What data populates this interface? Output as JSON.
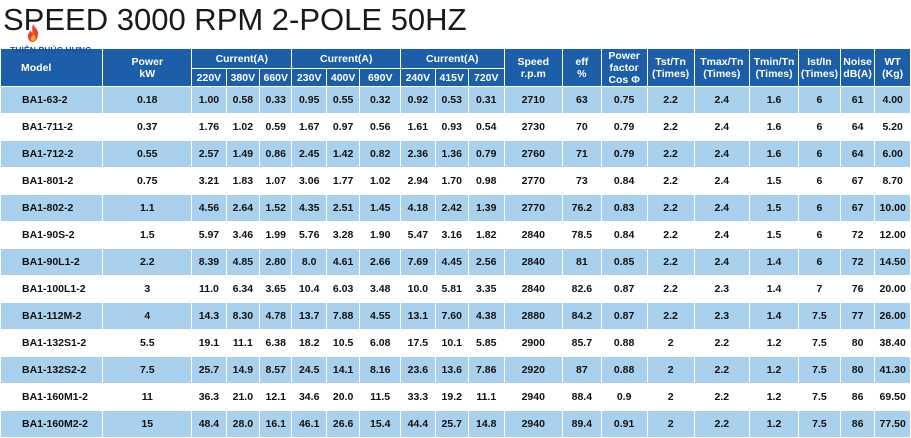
{
  "title": {
    "speed": "SPEED",
    "rest": "3000 RPM 2-POLE 50HZ"
  },
  "logo": {
    "brand": "THIÊN PHÚC HƯNG",
    "colors": {
      "flame": "#e8442a",
      "brand": "#1a4f9a"
    }
  },
  "colors": {
    "header_bg": "#1c5ea8",
    "row_highlight": "#a9d1ee",
    "row_plain": "#ffffff"
  },
  "table": {
    "headers": {
      "model": "Model",
      "power": [
        "Power",
        "kW"
      ],
      "current_group": "Current(A)",
      "voltages_1": [
        "220V",
        "380V",
        "660V"
      ],
      "voltages_2": [
        "230V",
        "400V",
        "690V"
      ],
      "voltages_3": [
        "240V",
        "415V",
        "720V"
      ],
      "speed": [
        "Speed",
        "r.p.m"
      ],
      "eff": [
        "eff",
        "%"
      ],
      "pf": [
        "Power",
        "factor",
        "Cos Φ"
      ],
      "tst": [
        "Tst/Tn",
        "(Times)"
      ],
      "tmax": [
        "Tmax/Tn",
        "(Times)"
      ],
      "tmin": [
        "Tmin/Tn",
        "(Times)"
      ],
      "ist": [
        "Ist/In",
        "(Times)"
      ],
      "noise": [
        "Noise",
        "dB(A)"
      ],
      "wt": [
        "WT",
        "(Kg)"
      ]
    },
    "rows": [
      [
        "BA1-63-2",
        "0.18",
        "1.00",
        "0.58",
        "0.33",
        "0.95",
        "0.55",
        "0.32",
        "0.92",
        "0.53",
        "0.31",
        "2710",
        "63",
        "0.75",
        "2.2",
        "2.4",
        "1.6",
        "6",
        "61",
        "4.00"
      ],
      [
        "BA1-711-2",
        "0.37",
        "1.76",
        "1.02",
        "0.59",
        "1.67",
        "0.97",
        "0.56",
        "1.61",
        "0.93",
        "0.54",
        "2730",
        "70",
        "0.79",
        "2.2",
        "2.4",
        "1.6",
        "6",
        "64",
        "5.20"
      ],
      [
        "BA1-712-2",
        "0.55",
        "2.57",
        "1.49",
        "0.86",
        "2.45",
        "1.42",
        "0.82",
        "2.36",
        "1.36",
        "0.79",
        "2760",
        "71",
        "0.79",
        "2.2",
        "2.4",
        "1.6",
        "6",
        "64",
        "6.00"
      ],
      [
        "BA1-801-2",
        "0.75",
        "3.21",
        "1.83",
        "1.07",
        "3.06",
        "1.77",
        "1.02",
        "2.94",
        "1.70",
        "0.98",
        "2770",
        "73",
        "0.84",
        "2.2",
        "2.4",
        "1.5",
        "6",
        "67",
        "8.70"
      ],
      [
        "BA1-802-2",
        "1.1",
        "4.56",
        "2.64",
        "1.52",
        "4.35",
        "2.51",
        "1.45",
        "4.18",
        "2.42",
        "1.39",
        "2770",
        "76.2",
        "0.83",
        "2.2",
        "2.4",
        "1.5",
        "6",
        "67",
        "10.00"
      ],
      [
        "BA1-90S-2",
        "1.5",
        "5.97",
        "3.46",
        "1.99",
        "5.76",
        "3.28",
        "1.90",
        "5.47",
        "3.16",
        "1.82",
        "2840",
        "78.5",
        "0.84",
        "2.2",
        "2.4",
        "1.5",
        "6",
        "72",
        "12.00"
      ],
      [
        "BA1-90L1-2",
        "2.2",
        "8.39",
        "4.85",
        "2.80",
        "8.0",
        "4.61",
        "2.66",
        "7.69",
        "4.45",
        "2.56",
        "2840",
        "81",
        "0.85",
        "2.2",
        "2.4",
        "1.4",
        "6",
        "72",
        "14.50"
      ],
      [
        "BA1-100L1-2",
        "3",
        "11.0",
        "6.34",
        "3.65",
        "10.4",
        "6.03",
        "3.48",
        "10.0",
        "5.81",
        "3.35",
        "2840",
        "82.6",
        "0.87",
        "2.2",
        "2.3",
        "1.4",
        "7",
        "76",
        "20.00"
      ],
      [
        "BA1-112M-2",
        "4",
        "14.3",
        "8.30",
        "4.78",
        "13.7",
        "7.88",
        "4.55",
        "13.1",
        "7.60",
        "4.38",
        "2880",
        "84.2",
        "0.87",
        "2.2",
        "2.3",
        "1.4",
        "7.5",
        "77",
        "26.00"
      ],
      [
        "BA1-132S1-2",
        "5.5",
        "19.1",
        "11.1",
        "6.38",
        "18.2",
        "10.5",
        "6.08",
        "17.5",
        "10.1",
        "5.85",
        "2900",
        "85.7",
        "0.88",
        "2",
        "2.2",
        "1.2",
        "7.5",
        "80",
        "38.40"
      ],
      [
        "BA1-132S2-2",
        "7.5",
        "25.7",
        "14.9",
        "8.57",
        "24.5",
        "14.1",
        "8.16",
        "23.6",
        "13.6",
        "7.86",
        "2920",
        "87",
        "0.88",
        "2",
        "2.2",
        "1.2",
        "7.5",
        "80",
        "41.30"
      ],
      [
        "BA1-160M1-2",
        "11",
        "36.3",
        "21.0",
        "12.1",
        "34.6",
        "20.0",
        "11.5",
        "33.3",
        "19.2",
        "11.1",
        "2940",
        "88.4",
        "0.9",
        "2",
        "2.2",
        "1.2",
        "7.5",
        "86",
        "69.50"
      ],
      [
        "BA1-160M2-2",
        "15",
        "48.4",
        "28.0",
        "16.1",
        "46.1",
        "26.6",
        "15.4",
        "44.4",
        "25.7",
        "14.8",
        "2940",
        "89.4",
        "0.91",
        "2",
        "2.2",
        "1.2",
        "7.5",
        "86",
        "77.50"
      ]
    ]
  }
}
